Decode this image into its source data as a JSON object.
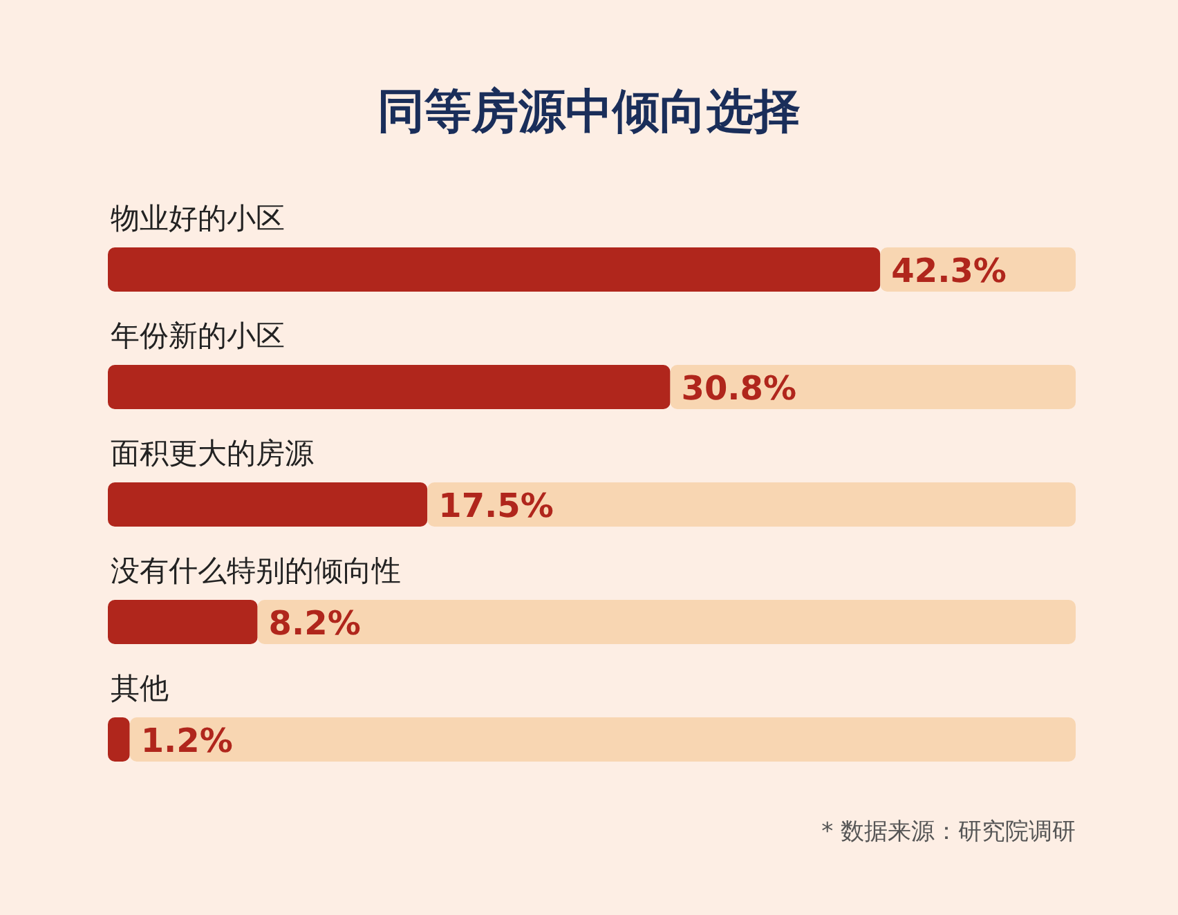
{
  "chart_data": {
    "type": "bar",
    "orientation": "horizontal",
    "stacked": true,
    "title": "同等房源中倾向选择",
    "categories": [
      "物业好的小区",
      "年份新的小区",
      "面积更大的房源",
      "没有什么特别的倾向性",
      "其他"
    ],
    "series": [
      {
        "color": "#b0261c",
        "values": [
          42.3,
          30.8,
          17.5,
          8.2,
          1.2
        ],
        "value_labels": [
          "42.3%",
          "30.8%",
          "17.5%",
          "8.2%",
          "1.2%"
        ]
      },
      {
        "color": "#f8d6b2",
        "values": [
          10.7,
          22.2,
          35.5,
          44.8,
          51.8
        ]
      }
    ],
    "xlim": [
      0,
      53
    ],
    "annotations": [
      "* 数据来源：研究院调研"
    ]
  }
}
